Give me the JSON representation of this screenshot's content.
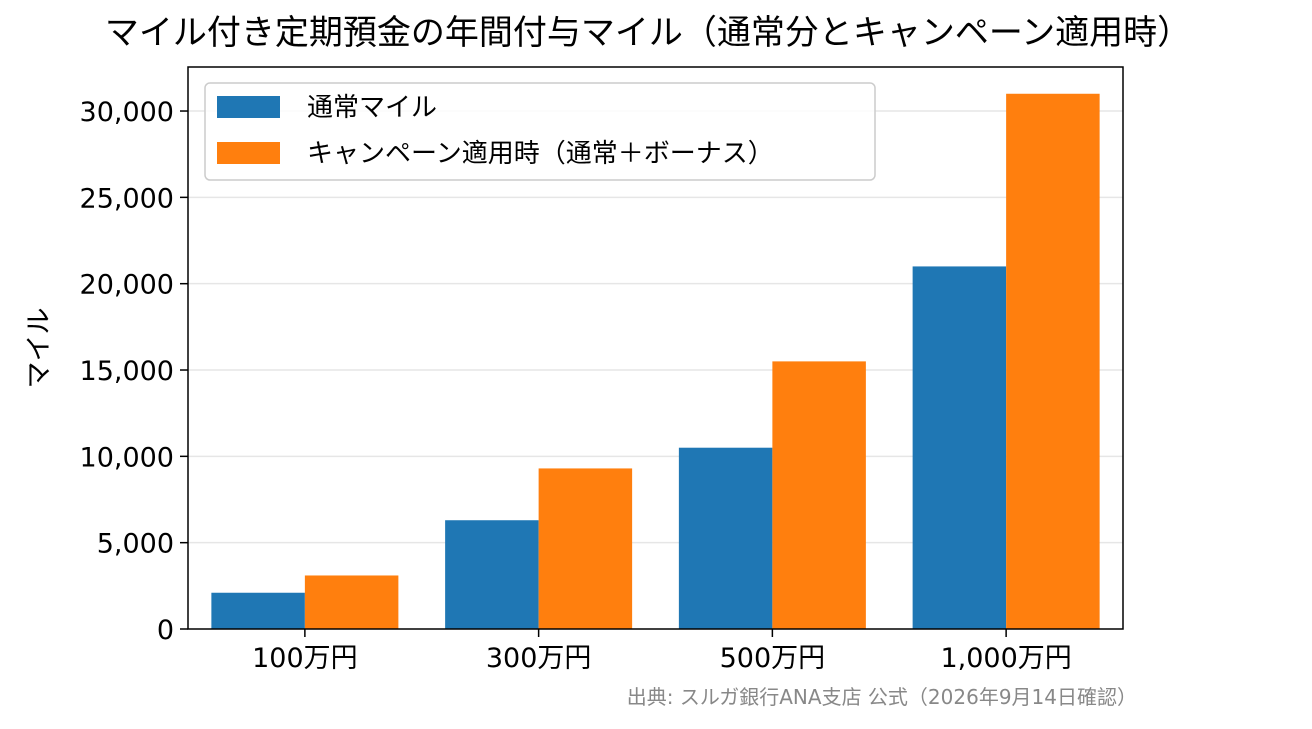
{
  "chart_data": {
    "type": "bar",
    "title": "マイル付き定期預金の年間付与マイル（通常分とキャンペーン適用時）",
    "xlabel": "",
    "ylabel": "マイル",
    "categories": [
      "100万円",
      "300万円",
      "500万円",
      "1,000万円"
    ],
    "series": [
      {
        "name": "通常マイル",
        "values": [
          2100,
          6300,
          10500,
          21000
        ],
        "color": "#1f77b4"
      },
      {
        "name": "キャンペーン適用時（通常＋ボーナス）",
        "values": [
          3100,
          9300,
          15500,
          31000
        ],
        "color": "#ff7f0e"
      }
    ],
    "ylim": [
      0,
      32550
    ],
    "yticks": [
      0,
      5000,
      10000,
      15000,
      20000,
      25000,
      30000
    ],
    "ytick_labels": [
      "0",
      "5,000",
      "10,000",
      "15,000",
      "20,000",
      "25,000",
      "30,000"
    ],
    "grid": "horizontal",
    "legend_position": "top-left"
  },
  "footnote": "出典: スルガ銀行ANA支店 公式（2026年9月14日確認）"
}
